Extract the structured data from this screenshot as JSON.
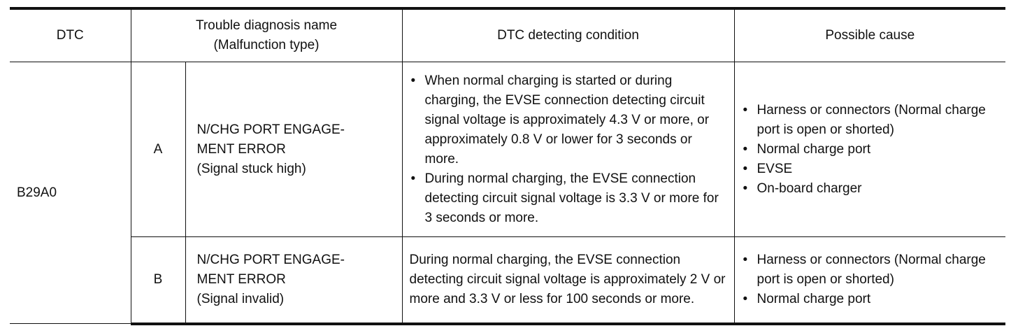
{
  "headers": {
    "dtc": "DTC",
    "name_line1": "Trouble diagnosis name",
    "name_line2": "(Malfunction type)",
    "condition": "DTC detecting condition",
    "cause": "Possible cause"
  },
  "dtc": "B29A0",
  "rows": [
    {
      "letter": "A",
      "name_line1": "N/CHG PORT ENGAGE-",
      "name_line2": "MENT ERROR",
      "name_line3": "(Signal stuck high)",
      "conditions": [
        "When normal charging is started or during charging, the EVSE connection detecting circuit signal voltage is approximately 4.3 V or more, or approximately 0.8 V or lower for 3 seconds or more.",
        "During normal charging, the EVSE connection detecting circuit signal voltage is 3.3 V or more for 3 seconds or more."
      ],
      "causes": [
        "Harness or connectors (Normal charge port is open or shorted)",
        "Normal charge port",
        "EVSE",
        "On-board charger"
      ]
    },
    {
      "letter": "B",
      "name_line1": "N/CHG PORT ENGAGE-",
      "name_line2": "MENT ERROR",
      "name_line3": "(Signal invalid)",
      "condition": "During normal charging, the EVSE connection detecting circuit signal voltage is approximately 2 V or more and 3.3 V or less for 100 seconds or more.",
      "causes": [
        "Harness or connectors (Normal charge port is open or shorted)",
        "Normal charge port"
      ]
    }
  ]
}
